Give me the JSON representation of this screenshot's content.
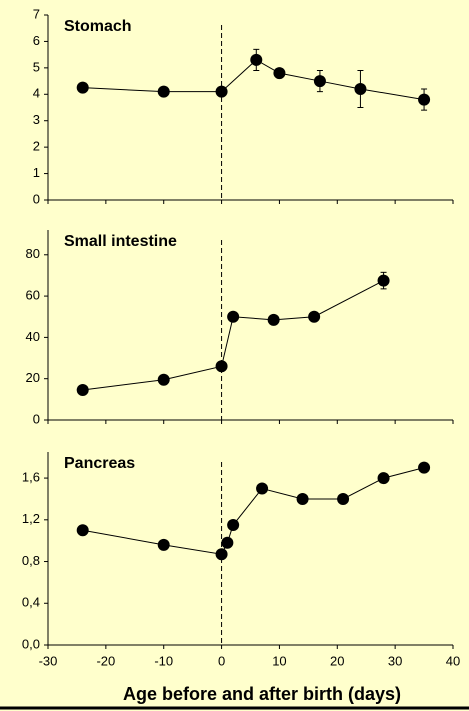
{
  "chart_data": [
    {
      "type": "line",
      "title": "Stomach",
      "color": "#000000",
      "dashed_x": 0,
      "x": [
        -24,
        -10,
        0,
        6,
        10,
        17,
        24,
        35
      ],
      "values": [
        4.25,
        4.1,
        4.1,
        5.3,
        4.8,
        4.5,
        4.2,
        3.8
      ],
      "errors": [
        null,
        null,
        null,
        0.4,
        null,
        0.4,
        0.7,
        0.4
      ],
      "xlim": [
        -30,
        40
      ],
      "xticks": [
        -30,
        -20,
        -10,
        0,
        10,
        20,
        30,
        40
      ],
      "ylim": [
        0,
        7
      ],
      "yticks": [
        0,
        1,
        2,
        3,
        4,
        5,
        6,
        7
      ]
    },
    {
      "type": "line",
      "title": "Small intestine",
      "color": "#000000",
      "dashed_x": 0,
      "x": [
        -24,
        -10,
        0,
        2,
        9,
        16,
        28
      ],
      "values": [
        14.5,
        19.5,
        26,
        50,
        48.5,
        50,
        67.5
      ],
      "errors": [
        null,
        null,
        null,
        null,
        null,
        null,
        4
      ],
      "xlim": [
        -30,
        40
      ],
      "xticks": [
        -30,
        -20,
        -10,
        0,
        10,
        20,
        30,
        40
      ],
      "ylim": [
        0,
        92
      ],
      "yticks": [
        0,
        20,
        40,
        60,
        80
      ]
    },
    {
      "type": "line",
      "title": "Pancreas",
      "color": "#000000",
      "dashed_x": 0,
      "x": [
        -24,
        -10,
        0,
        1,
        2,
        7,
        14,
        21,
        28,
        35
      ],
      "values": [
        1.1,
        0.96,
        0.87,
        0.98,
        1.15,
        1.5,
        1.4,
        1.4,
        1.6,
        1.7
      ],
      "errors": [
        null,
        null,
        null,
        null,
        null,
        null,
        null,
        null,
        null,
        null
      ],
      "xlim": [
        -30,
        40
      ],
      "xticks": [
        -30,
        -20,
        -10,
        0,
        10,
        20,
        30,
        40
      ],
      "ylim": [
        0,
        1.85
      ],
      "yticks": [
        {
          "value": 0,
          "label": "0,0"
        },
        {
          "value": 0.4,
          "label": "0,4"
        },
        {
          "value": 0.8,
          "label": "0,8"
        },
        {
          "value": 1.2,
          "label": "1,2"
        },
        {
          "value": 1.6,
          "label": "1,6"
        }
      ],
      "x_label": "Age before and after birth (days)"
    }
  ]
}
